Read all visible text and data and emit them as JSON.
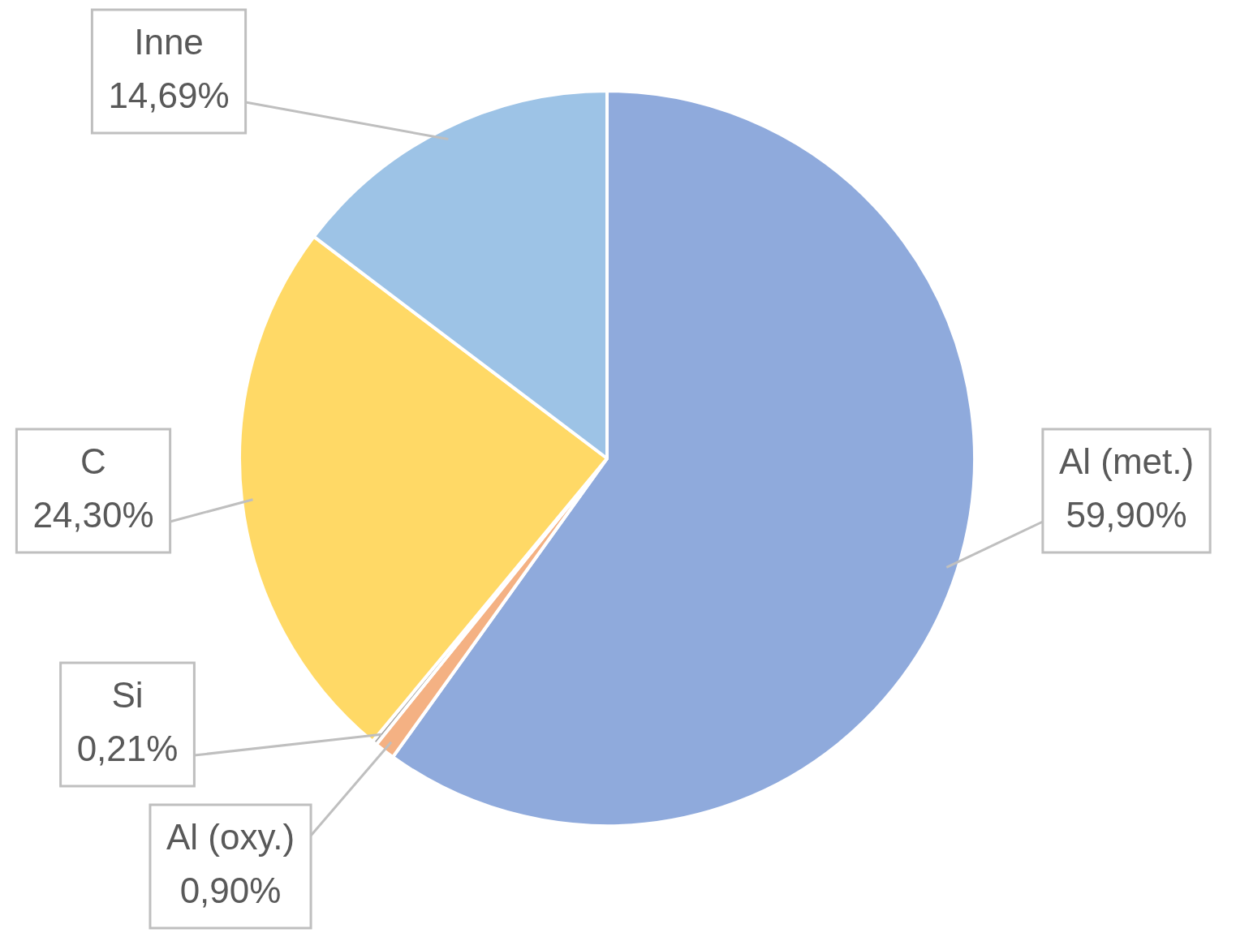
{
  "chart_data": {
    "type": "pie",
    "categories": [
      "Al (met.)",
      "Al (oxy.)",
      "Si",
      "C",
      "Inne"
    ],
    "values": [
      59.9,
      0.9,
      0.21,
      24.3,
      14.69
    ],
    "colors": [
      "#8faadc",
      "#f4b183",
      "#a5a5a5",
      "#ffd966",
      "#9dc3e6"
    ],
    "value_labels": [
      "59,90%",
      "0,90%",
      "0,21%",
      "24,30%",
      "14,69%"
    ],
    "legend": false
  }
}
